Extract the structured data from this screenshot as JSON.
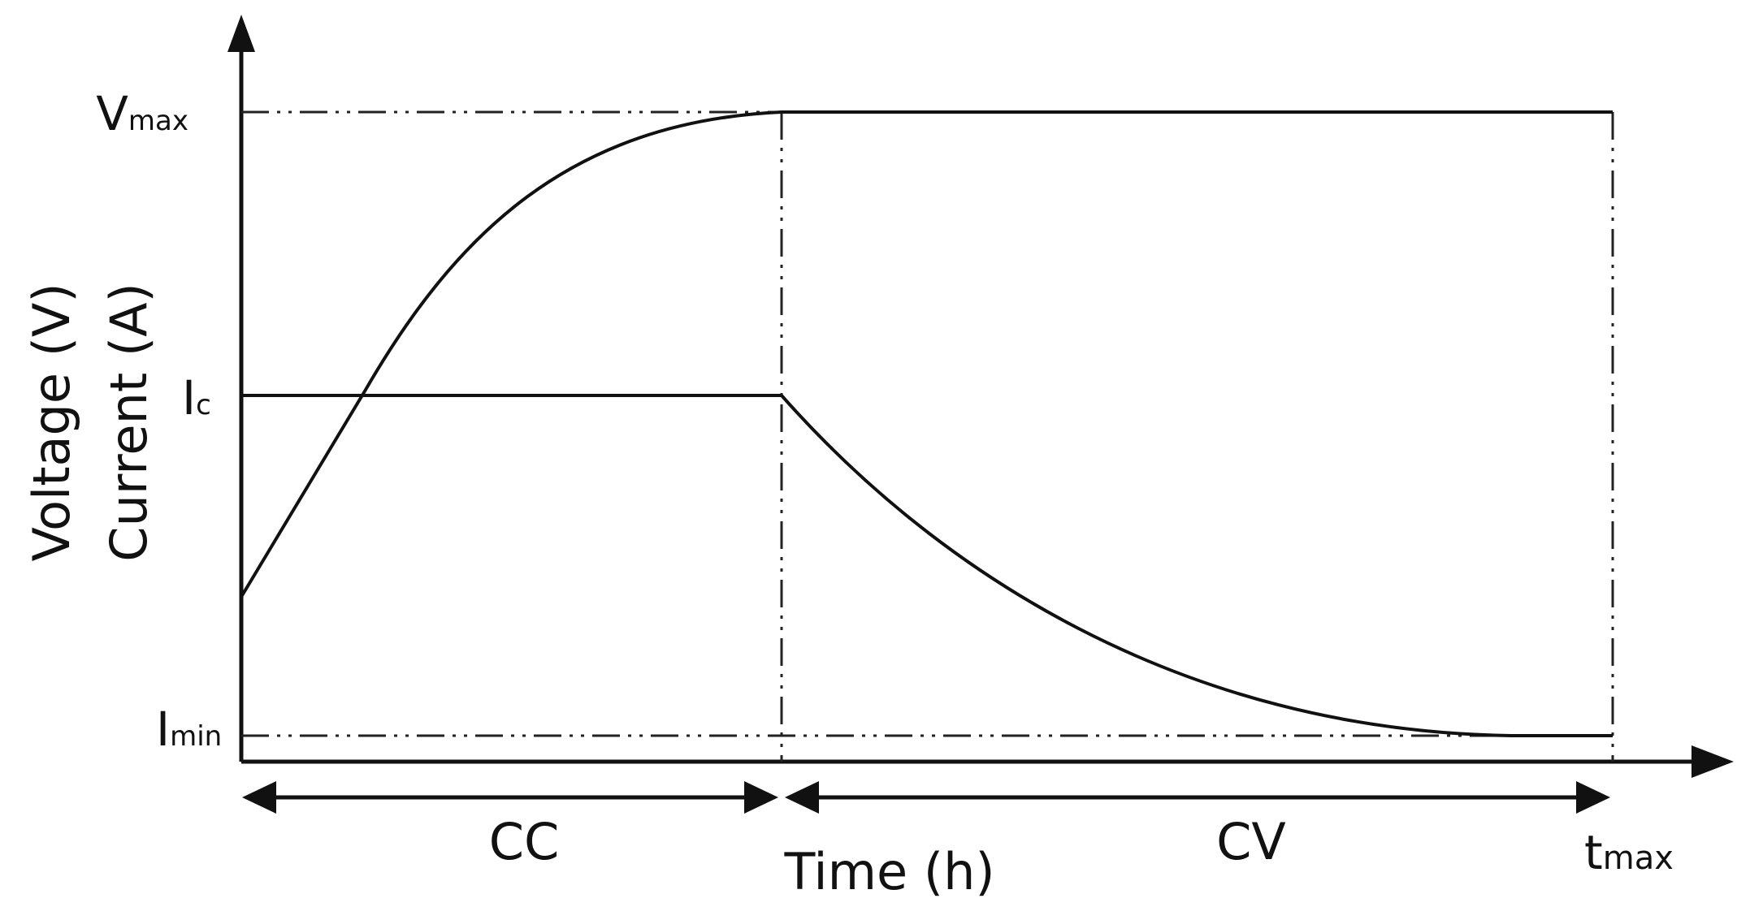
{
  "diagram": {
    "y_axis_label_line1": "Voltage (V)",
    "y_axis_label_line2": "Current (A)",
    "x_axis_label": "Time (h)",
    "vmax_label_main": "V",
    "vmax_label_sub": "max",
    "ic_label_main": "I",
    "ic_label_sub": "c",
    "imin_label_main": "I",
    "imin_label_sub": "min",
    "tmax_label_main": "t",
    "tmax_label_sub": "max",
    "phase_cc_label": "CC",
    "phase_cv_label": "CV"
  },
  "colors": {
    "ink": "#111111",
    "background": "#ffffff"
  }
}
